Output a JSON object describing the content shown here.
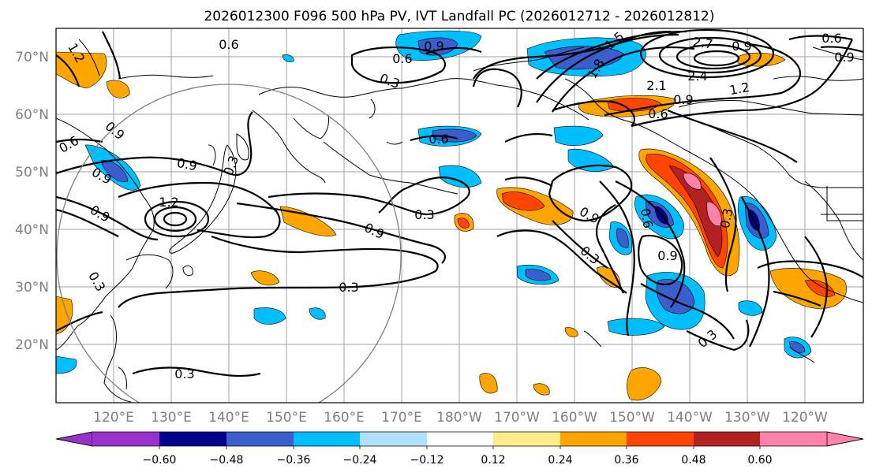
{
  "title": "2026012300 F096 500 hPa PV, IVT Landfall PC (2026012712 - 2026012812)",
  "map": {
    "lat_labels": [
      "70°N",
      "60°N",
      "50°N",
      "40°N",
      "30°N",
      "20°N"
    ],
    "lon_labels": [
      "120°E",
      "130°E",
      "140°E",
      "150°E",
      "160°E",
      "170°E",
      "180°W",
      "170°W",
      "160°W",
      "150°W",
      "140°W",
      "130°W",
      "120°W"
    ],
    "pv_contour_labels": [
      "1.2",
      "0.6",
      "0.3",
      "0.6",
      "0.9",
      "1.5",
      "1.8",
      "2.7",
      "0.9",
      "2.1",
      "2.4",
      "1.2",
      "0.9",
      "0.6",
      "0.9",
      "0.6",
      "0.6",
      "0.9",
      "0.9",
      "0.3",
      "1.2",
      "0.6",
      "0.9",
      "0.3",
      "0.9",
      "0.9",
      "0.3",
      "0.3",
      "0.9",
      "0.3",
      "0.6",
      "0.9",
      "0.3",
      "0.3",
      "0.3"
    ]
  },
  "colorbar": {
    "colors": [
      "#9932cc",
      "#00008b",
      "#3a5fcd",
      "#00bfff",
      "#b0e2ff",
      "#ffffff",
      "#ffec8b",
      "#ffa500",
      "#ff4500",
      "#b22222",
      "#ff82ab"
    ],
    "tick_labels": [
      "−0.60",
      "−0.48",
      "−0.36",
      "−0.24",
      "−0.12",
      "0.12",
      "0.24",
      "0.36",
      "0.48",
      "0.60"
    ]
  }
}
